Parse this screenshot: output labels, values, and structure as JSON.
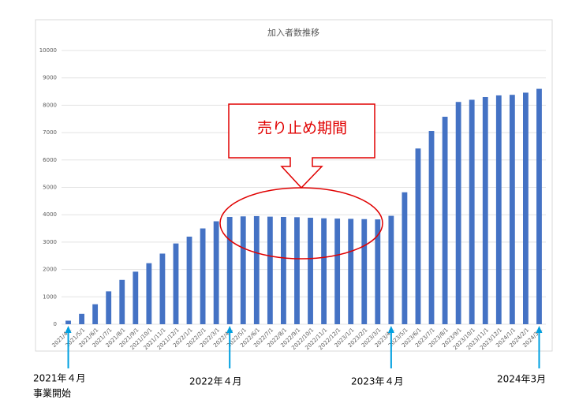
{
  "chart_data": {
    "type": "bar",
    "title": "加入者数推移",
    "categories": [
      "2021/4/1",
      "2021/5/1",
      "2021/6/1",
      "2021/7/1",
      "2021/8/1",
      "2021/9/1",
      "2021/10/1",
      "2021/11/1",
      "2021/12/1",
      "2022/1/1",
      "2022/2/1",
      "2022/3/1",
      "2022/4/1",
      "2022/5/1",
      "2022/6/1",
      "2022/7/1",
      "2022/8/1",
      "2022/9/1",
      "2022/10/1",
      "2022/11/1",
      "2022/12/1",
      "2023/1/1",
      "2023/2/1",
      "2023/3/1",
      "2023/4/1",
      "2023/5/1",
      "2023/6/1",
      "2023/7/1",
      "2023/8/1",
      "2023/9/1",
      "2023/10/1",
      "2023/11/1",
      "2023/12/1",
      "2024/1/1",
      "2024/2/1",
      "2024/3/1"
    ],
    "values": [
      130,
      380,
      730,
      1200,
      1620,
      1920,
      2230,
      2580,
      2950,
      3200,
      3500,
      3760,
      3920,
      3940,
      3950,
      3930,
      3920,
      3910,
      3890,
      3870,
      3860,
      3850,
      3840,
      3830,
      3960,
      4820,
      6420,
      7060,
      7580,
      8120,
      8200,
      8300,
      8360,
      8380,
      8460,
      8600
    ],
    "color": "#4472c4",
    "ylim": [
      0,
      10000
    ],
    "yticks": [
      0,
      1000,
      2000,
      3000,
      4000,
      5000,
      6000,
      7000,
      8000,
      9000,
      10000
    ],
    "grid": true,
    "callout": "売り止め期間",
    "annotations": [
      [
        "2021年４月",
        "事業開始"
      ],
      [
        "2022年４月"
      ],
      [
        "2023年４月"
      ],
      [
        "2024年3月"
      ]
    ]
  }
}
